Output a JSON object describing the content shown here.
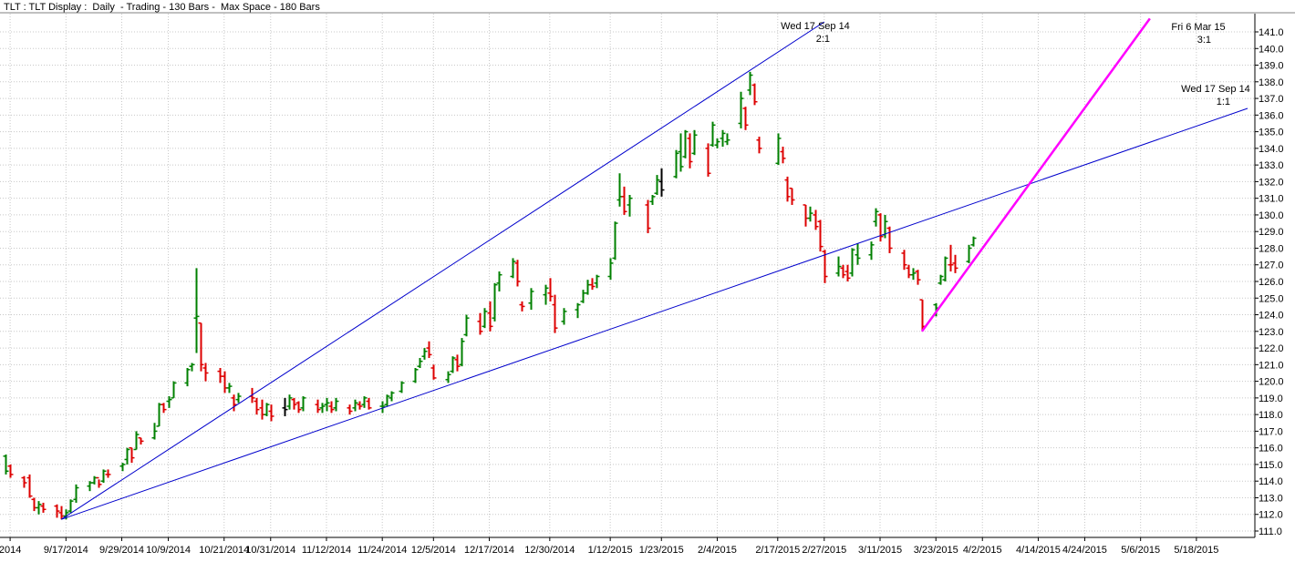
{
  "header": {
    "title": "TLT : TLT Display :  Daily  - Trading - 130 Bars -  Max Space - 180 Bars"
  },
  "chart_data": {
    "type": "ohlc-bar",
    "ylim": [
      110.5,
      142.0
    ],
    "y_ticks": [
      111,
      112,
      113,
      114,
      115,
      116,
      117,
      118,
      119,
      120,
      121,
      122,
      123,
      124,
      125,
      126,
      127,
      128,
      129,
      130,
      131,
      132,
      133,
      134,
      135,
      136,
      137,
      138,
      139,
      140,
      141
    ],
    "x_date_range": [
      "2014-09-04",
      "2015-05-29"
    ],
    "x_ticks": [
      {
        "label": "2014",
        "date": "2014-09-05"
      },
      {
        "label": "9/17/2014",
        "date": "2014-09-17"
      },
      {
        "label": "9/29/2014",
        "date": "2014-09-29"
      },
      {
        "label": "10/9/2014",
        "date": "2014-10-09"
      },
      {
        "label": "10/21/2014",
        "date": "2014-10-21"
      },
      {
        "label": "10/31/2014",
        "date": "2014-10-31"
      },
      {
        "label": "11/12/2014",
        "date": "2014-11-12"
      },
      {
        "label": "11/24/2014",
        "date": "2014-11-24"
      },
      {
        "label": "12/5/2014",
        "date": "2014-12-05"
      },
      {
        "label": "12/17/2014",
        "date": "2014-12-17"
      },
      {
        "label": "12/30/2014",
        "date": "2014-12-30"
      },
      {
        "label": "1/12/2015",
        "date": "2015-01-12"
      },
      {
        "label": "1/23/2015",
        "date": "2015-01-23"
      },
      {
        "label": "2/4/2015",
        "date": "2015-02-04"
      },
      {
        "label": "2/17/2015",
        "date": "2015-02-17"
      },
      {
        "label": "2/27/2015",
        "date": "2015-02-27"
      },
      {
        "label": "3/11/2015",
        "date": "2015-03-11"
      },
      {
        "label": "3/23/2015",
        "date": "2015-03-23"
      },
      {
        "label": "4/2/2015",
        "date": "2015-04-02"
      },
      {
        "label": "4/14/2015",
        "date": "2015-04-14"
      },
      {
        "label": "4/24/2015",
        "date": "2015-04-24"
      },
      {
        "label": "5/6/2015",
        "date": "2015-05-06"
      },
      {
        "label": "5/18/2015",
        "date": "2015-05-18"
      }
    ],
    "colors": {
      "up": "#008000",
      "down": "#dd0000",
      "neutral": "#000000",
      "gann_blue": "#0000cc",
      "gann_magenta": "#ff00ff",
      "grid": "#c8c8c8"
    },
    "grid": true,
    "bars": [
      [
        "2014-09-04",
        115.5,
        115.6,
        114.4,
        114.6,
        "up"
      ],
      [
        "2014-09-05",
        114.9,
        115.0,
        114.2,
        114.4,
        "down"
      ],
      [
        "2014-09-08",
        114.2,
        114.3,
        113.6,
        113.9,
        "down"
      ],
      [
        "2014-09-09",
        114.2,
        114.4,
        113.0,
        113.1,
        "down"
      ],
      [
        "2014-09-10",
        112.9,
        113.0,
        112.2,
        112.4,
        "down"
      ],
      [
        "2014-09-11",
        112.4,
        112.8,
        112.0,
        112.6,
        "up"
      ],
      [
        "2014-09-12",
        112.5,
        112.7,
        112.1,
        112.3,
        "down"
      ],
      [
        "2014-09-15",
        112.5,
        112.6,
        111.8,
        112.2,
        "down"
      ],
      [
        "2014-09-16",
        112.1,
        112.5,
        111.7,
        111.9,
        "down"
      ],
      [
        "2014-09-17",
        111.9,
        112.3,
        111.7,
        112.1,
        "up"
      ],
      [
        "2014-09-18",
        112.2,
        112.9,
        112.1,
        112.8,
        "up"
      ],
      [
        "2014-09-19",
        112.9,
        113.8,
        112.7,
        113.6,
        "up"
      ],
      [
        "2014-09-22",
        113.7,
        114.0,
        113.4,
        113.9,
        "up"
      ],
      [
        "2014-09-23",
        113.9,
        114.3,
        113.8,
        114.2,
        "up"
      ],
      [
        "2014-09-24",
        114.2,
        114.1,
        113.6,
        113.8,
        "down"
      ],
      [
        "2014-09-25",
        114.0,
        114.7,
        113.9,
        114.6,
        "up"
      ],
      [
        "2014-09-26",
        114.4,
        114.7,
        114.2,
        114.4,
        "down"
      ],
      [
        "2014-09-29",
        114.9,
        115.1,
        114.6,
        115.0,
        "up"
      ],
      [
        "2014-09-30",
        115.3,
        116.0,
        115.0,
        115.9,
        "up"
      ],
      [
        "2014-10-01",
        116.0,
        116.0,
        115.1,
        115.4,
        "down"
      ],
      [
        "2014-10-02",
        115.9,
        117.0,
        115.9,
        116.8,
        "up"
      ],
      [
        "2014-10-03",
        116.6,
        116.6,
        116.2,
        116.4,
        "down"
      ],
      [
        "2014-10-06",
        116.6,
        117.5,
        116.5,
        117.0,
        "up"
      ],
      [
        "2014-10-07",
        117.3,
        118.7,
        117.3,
        118.6,
        "up"
      ],
      [
        "2014-10-08",
        118.6,
        118.7,
        118.1,
        118.3,
        "down"
      ],
      [
        "2014-10-09",
        118.8,
        119.1,
        118.4,
        118.9,
        "up"
      ],
      [
        "2014-10-10",
        119.0,
        120.0,
        119.0,
        119.9,
        "up"
      ],
      [
        "2014-10-13",
        119.9,
        120.8,
        119.7,
        120.7,
        "up"
      ],
      [
        "2014-10-14",
        120.9,
        121.1,
        120.6,
        121.0,
        "up"
      ],
      [
        "2014-10-15",
        123.8,
        126.8,
        121.7,
        123.9,
        "up"
      ],
      [
        "2014-10-16",
        123.5,
        123.5,
        120.6,
        121.0,
        "down"
      ],
      [
        "2014-10-17",
        120.8,
        121.1,
        120.0,
        120.5,
        "down"
      ],
      [
        "2014-10-20",
        120.6,
        120.8,
        119.9,
        120.3,
        "down"
      ],
      [
        "2014-10-21",
        120.3,
        120.6,
        119.3,
        119.6,
        "down"
      ],
      [
        "2014-10-22",
        119.6,
        119.9,
        119.3,
        119.7,
        "up"
      ],
      [
        "2014-10-23",
        119.0,
        119.2,
        118.2,
        118.6,
        "down"
      ],
      [
        "2014-10-24",
        118.9,
        119.3,
        118.7,
        119.1,
        "up"
      ],
      [
        "2014-10-27",
        119.1,
        119.6,
        118.7,
        119.0,
        "down"
      ],
      [
        "2014-10-28",
        118.8,
        119.0,
        118.0,
        118.3,
        "down"
      ],
      [
        "2014-10-29",
        118.4,
        118.9,
        117.7,
        118.0,
        "down"
      ],
      [
        "2014-10-30",
        118.0,
        118.7,
        117.9,
        118.6,
        "up"
      ],
      [
        "2014-10-31",
        118.2,
        118.6,
        117.6,
        117.9,
        "down"
      ],
      [
        "2014-11-03",
        118.4,
        119.0,
        117.9,
        118.3,
        "neutral"
      ],
      [
        "2014-11-04",
        118.5,
        119.2,
        118.3,
        119.0,
        "up"
      ],
      [
        "2014-11-05",
        118.9,
        119.0,
        118.3,
        118.6,
        "down"
      ],
      [
        "2014-11-06",
        118.7,
        118.8,
        118.1,
        118.3,
        "down"
      ],
      [
        "2014-11-07",
        118.4,
        119.1,
        118.2,
        119.0,
        "up"
      ],
      [
        "2014-11-10",
        118.6,
        118.9,
        118.1,
        118.3,
        "down"
      ],
      [
        "2014-11-11",
        118.4,
        118.7,
        118.1,
        118.5,
        "up"
      ],
      [
        "2014-11-12",
        118.6,
        119.0,
        118.2,
        118.7,
        "up"
      ],
      [
        "2014-11-13",
        118.5,
        118.8,
        118.1,
        118.3,
        "down"
      ],
      [
        "2014-11-14",
        118.4,
        119.0,
        118.2,
        118.8,
        "up"
      ],
      [
        "2014-11-17",
        118.4,
        118.6,
        118.0,
        118.2,
        "down"
      ],
      [
        "2014-11-18",
        118.4,
        118.9,
        118.2,
        118.7,
        "up"
      ],
      [
        "2014-11-19",
        118.6,
        118.8,
        118.3,
        118.5,
        "down"
      ],
      [
        "2014-11-20",
        118.6,
        119.1,
        118.4,
        119.0,
        "up"
      ],
      [
        "2014-11-21",
        118.8,
        119.0,
        118.3,
        118.4,
        "down"
      ],
      [
        "2014-11-24",
        118.5,
        118.8,
        118.1,
        118.5,
        "up"
      ],
      [
        "2014-11-25",
        118.6,
        119.2,
        118.5,
        119.1,
        "up"
      ],
      [
        "2014-11-26",
        119.0,
        119.4,
        118.8,
        119.3,
        "up"
      ],
      [
        "2014-11-28",
        119.4,
        120.0,
        119.3,
        119.9,
        "up"
      ],
      [
        "2014-12-01",
        120.0,
        120.8,
        119.9,
        120.7,
        "up"
      ],
      [
        "2014-12-02",
        120.9,
        121.4,
        120.8,
        121.2,
        "up"
      ],
      [
        "2014-12-03",
        121.5,
        122.0,
        121.3,
        121.8,
        "up"
      ],
      [
        "2014-12-04",
        122.0,
        122.4,
        121.4,
        121.6,
        "down"
      ],
      [
        "2014-12-05",
        120.8,
        121.0,
        120.1,
        120.2,
        "down"
      ],
      [
        "2014-12-08",
        120.1,
        120.6,
        119.9,
        120.4,
        "up"
      ],
      [
        "2014-12-09",
        120.6,
        121.5,
        120.5,
        121.4,
        "up"
      ],
      [
        "2014-12-10",
        121.3,
        121.6,
        120.6,
        120.9,
        "down"
      ],
      [
        "2014-12-11",
        121.0,
        122.6,
        120.9,
        122.4,
        "up"
      ],
      [
        "2014-12-12",
        122.8,
        124.0,
        122.7,
        123.8,
        "up"
      ],
      [
        "2014-12-15",
        123.6,
        124.1,
        122.8,
        123.0,
        "down"
      ],
      [
        "2014-12-16",
        123.3,
        124.4,
        123.2,
        124.2,
        "up"
      ],
      [
        "2014-12-17",
        124.1,
        124.8,
        123.0,
        123.3,
        "down"
      ],
      [
        "2014-12-18",
        123.8,
        125.9,
        123.6,
        125.8,
        "up"
      ],
      [
        "2014-12-19",
        125.9,
        126.6,
        125.4,
        126.4,
        "up"
      ],
      [
        "2014-12-22",
        126.3,
        127.4,
        126.2,
        127.2,
        "up"
      ],
      [
        "2014-12-23",
        127.1,
        127.3,
        125.7,
        126.0,
        "down"
      ],
      [
        "2014-12-24",
        124.6,
        124.8,
        124.2,
        124.5,
        "down"
      ],
      [
        "2014-12-26",
        124.7,
        125.6,
        124.3,
        125.4,
        "up"
      ],
      [
        "2014-12-29",
        125.2,
        125.8,
        124.6,
        125.6,
        "up"
      ],
      [
        "2014-12-30",
        125.3,
        126.2,
        124.8,
        125.1,
        "down"
      ],
      [
        "2014-12-31",
        124.6,
        125.2,
        122.9,
        123.2,
        "down"
      ],
      [
        "2015-01-02",
        123.6,
        124.4,
        123.4,
        124.2,
        "up"
      ],
      [
        "2015-01-05",
        124.3,
        124.7,
        123.8,
        124.6,
        "up"
      ],
      [
        "2015-01-06",
        124.8,
        125.5,
        124.7,
        125.3,
        "up"
      ],
      [
        "2015-01-07",
        125.3,
        126.1,
        125.2,
        125.8,
        "up"
      ],
      [
        "2015-01-08",
        125.8,
        126.2,
        125.5,
        125.7,
        "down"
      ],
      [
        "2015-01-09",
        125.9,
        126.4,
        125.6,
        126.3,
        "up"
      ],
      [
        "2015-01-12",
        126.3,
        127.4,
        126.1,
        127.1,
        "up"
      ],
      [
        "2015-01-13",
        127.4,
        129.6,
        127.3,
        129.5,
        "up"
      ],
      [
        "2015-01-14",
        130.9,
        132.5,
        130.5,
        131.1,
        "up"
      ],
      [
        "2015-01-15",
        131.1,
        131.7,
        130.0,
        130.2,
        "down"
      ],
      [
        "2015-01-16",
        130.6,
        131.2,
        129.9,
        131.0,
        "up"
      ],
      [
        "2015-01-20",
        130.6,
        130.9,
        128.9,
        129.2,
        "down"
      ],
      [
        "2015-01-21",
        130.8,
        131.2,
        130.6,
        131.1,
        "up"
      ],
      [
        "2015-01-22",
        131.3,
        132.4,
        131.2,
        132.1,
        "up"
      ],
      [
        "2015-01-23",
        132.0,
        132.8,
        131.1,
        131.5,
        "neutral"
      ],
      [
        "2015-01-26",
        132.3,
        133.9,
        132.2,
        133.7,
        "up"
      ],
      [
        "2015-01-27",
        133.8,
        134.9,
        132.6,
        132.9,
        "up"
      ],
      [
        "2015-01-28",
        133.5,
        135.1,
        133.4,
        135.0,
        "up"
      ],
      [
        "2015-01-29",
        134.6,
        134.9,
        132.8,
        133.2,
        "down"
      ],
      [
        "2015-01-30",
        133.7,
        135.1,
        133.6,
        134.8,
        "up"
      ],
      [
        "2015-02-02",
        134.0,
        134.3,
        132.3,
        132.5,
        "down"
      ],
      [
        "2015-02-03",
        134.2,
        135.6,
        134.1,
        135.4,
        "up"
      ],
      [
        "2015-02-04",
        134.2,
        134.6,
        134.0,
        134.4,
        "up"
      ],
      [
        "2015-02-05",
        134.6,
        135.1,
        134.1,
        134.9,
        "up"
      ],
      [
        "2015-02-06",
        134.4,
        134.9,
        134.2,
        134.5,
        "up"
      ],
      [
        "2015-02-09",
        135.5,
        137.4,
        135.2,
        137.0,
        "up"
      ],
      [
        "2015-02-10",
        136.4,
        136.5,
        135.1,
        135.4,
        "down"
      ],
      [
        "2015-02-11",
        137.5,
        138.6,
        137.2,
        138.4,
        "up"
      ],
      [
        "2015-02-12",
        137.8,
        137.9,
        136.6,
        136.8,
        "down"
      ],
      [
        "2015-02-13",
        134.5,
        134.7,
        133.7,
        134.0,
        "down"
      ],
      [
        "2015-02-17",
        133.1,
        134.9,
        133.0,
        134.6,
        "up"
      ],
      [
        "2015-02-18",
        133.8,
        134.1,
        133.1,
        133.4,
        "down"
      ],
      [
        "2015-02-19",
        132.1,
        132.3,
        130.8,
        131.1,
        "down"
      ],
      [
        "2015-02-20",
        131.6,
        131.6,
        130.6,
        130.9,
        "down"
      ],
      [
        "2015-02-23",
        130.6,
        130.6,
        129.3,
        129.8,
        "down"
      ],
      [
        "2015-02-24",
        129.8,
        130.5,
        129.6,
        130.1,
        "up"
      ],
      [
        "2015-02-25",
        130.0,
        130.3,
        129.1,
        129.3,
        "down"
      ],
      [
        "2015-02-26",
        129.6,
        129.7,
        127.8,
        128.1,
        "down"
      ],
      [
        "2015-02-27",
        127.8,
        127.9,
        125.9,
        126.3,
        "down"
      ],
      [
        "2015-03-02",
        126.5,
        127.5,
        126.3,
        126.9,
        "up"
      ],
      [
        "2015-03-03",
        126.8,
        127.0,
        126.2,
        126.4,
        "down"
      ],
      [
        "2015-03-04",
        126.6,
        127.0,
        126.0,
        126.2,
        "down"
      ],
      [
        "2015-03-05",
        126.5,
        128.0,
        126.3,
        127.9,
        "up"
      ],
      [
        "2015-03-06",
        127.6,
        128.3,
        127.0,
        127.4,
        "up"
      ],
      [
        "2015-03-09",
        127.6,
        128.4,
        127.3,
        128.2,
        "up"
      ],
      [
        "2015-03-10",
        129.6,
        130.4,
        129.3,
        130.2,
        "up"
      ],
      [
        "2015-03-11",
        130.0,
        130.1,
        128.4,
        128.7,
        "down"
      ],
      [
        "2015-03-12",
        128.8,
        130.0,
        128.6,
        129.6,
        "up"
      ],
      [
        "2015-03-13",
        129.2,
        129.3,
        127.7,
        128.0,
        "down"
      ],
      [
        "2015-03-16",
        127.7,
        127.9,
        126.7,
        127.0,
        "down"
      ],
      [
        "2015-03-17",
        126.8,
        127.0,
        126.2,
        126.4,
        "down"
      ],
      [
        "2015-03-18",
        126.4,
        126.8,
        126.1,
        126.5,
        "up"
      ],
      [
        "2015-03-19",
        126.6,
        126.7,
        125.8,
        126.1,
        "down"
      ],
      [
        "2015-03-20",
        124.9,
        124.9,
        123.0,
        123.3,
        "down"
      ],
      [
        "2015-03-23",
        124.6,
        124.7,
        123.9,
        124.4,
        "up"
      ],
      [
        "2015-03-24",
        125.9,
        126.4,
        125.8,
        126.3,
        "up"
      ],
      [
        "2015-03-25",
        126.1,
        127.5,
        126.0,
        127.4,
        "up"
      ],
      [
        "2015-03-26",
        127.0,
        128.2,
        126.6,
        127.0,
        "down"
      ],
      [
        "2015-03-27",
        127.1,
        127.6,
        126.5,
        126.8,
        "down"
      ],
      [
        "2015-03-30",
        127.2,
        128.2,
        127.1,
        128.0,
        "up"
      ],
      [
        "2015-03-31",
        128.2,
        128.7,
        128.1,
        128.6,
        "up"
      ]
    ],
    "gann_lines": [
      {
        "ratio": "1:1",
        "color": "blue",
        "from": [
          "2014-09-16",
          111.7
        ],
        "to": [
          "2015-05-29",
          136.4
        ]
      },
      {
        "ratio": "2:1",
        "color": "blue",
        "from": [
          "2014-09-16",
          111.7
        ],
        "to": [
          "2015-02-27",
          141.6
        ]
      },
      {
        "ratio": "3:1",
        "color": "magenta",
        "from": [
          "2015-03-20",
          123.0
        ],
        "to": [
          "2015-05-08",
          141.8
        ]
      }
    ],
    "annotations": [
      {
        "date_text": "Wed 17 Sep 14",
        "ratio": "2:1"
      },
      {
        "date_text": "Wed 17 Sep 14",
        "ratio": "1:1"
      },
      {
        "date_text": "Fri 6 Mar 15",
        "ratio": "3:1"
      }
    ]
  }
}
